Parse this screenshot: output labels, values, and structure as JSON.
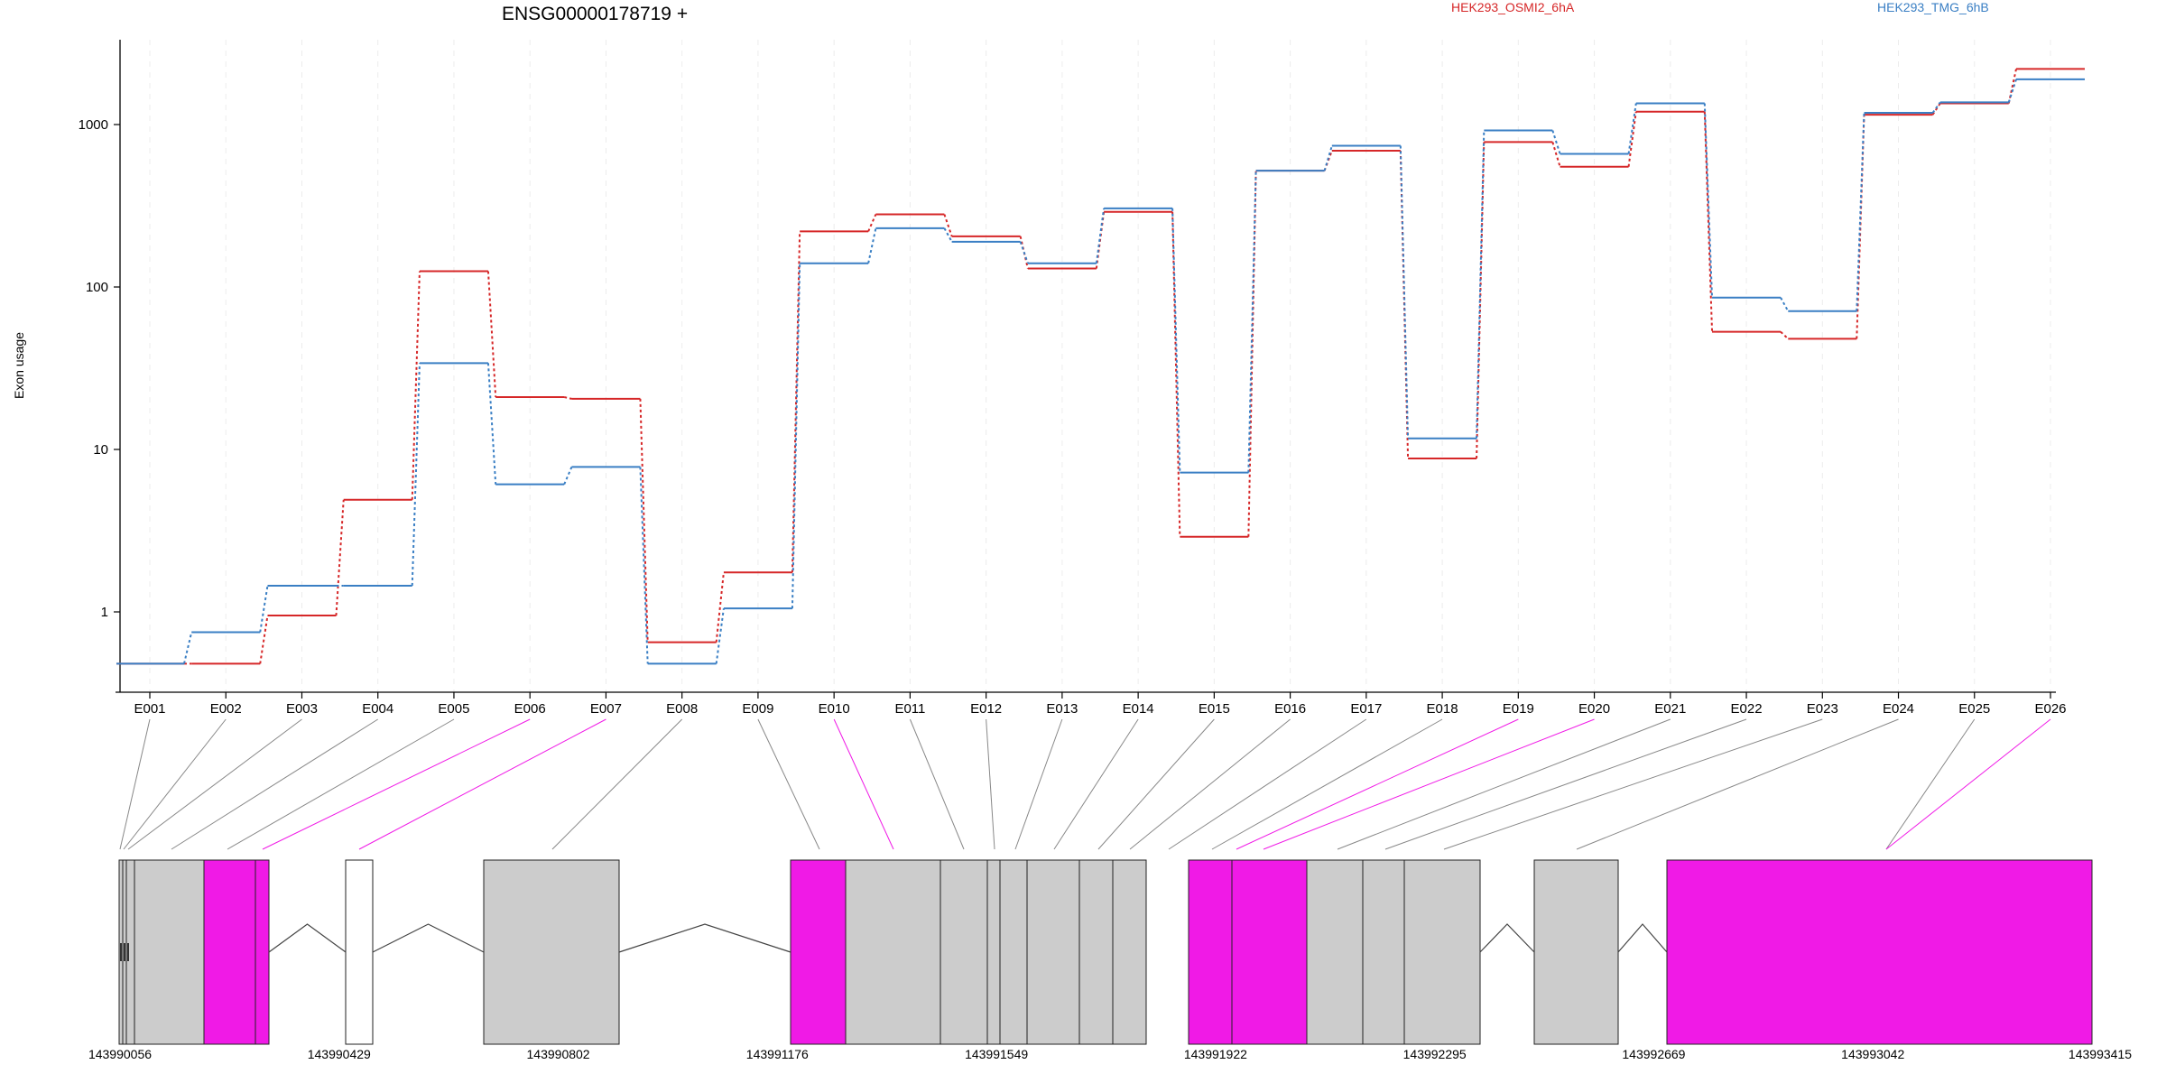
{
  "title": "ENSG00000178719 +",
  "legend": [
    {
      "name": "HEK293_OSMI2_6hA",
      "color": "#d62728"
    },
    {
      "name": "HEK293_TMG_6hB",
      "color": "#3a7fc4"
    }
  ],
  "chart_data": {
    "type": "line",
    "title": "ENSG00000178719 +",
    "ylabel": "Exon usage",
    "yscale": "log",
    "ylim": [
      0.4,
      3000
    ],
    "yticks": [
      1,
      10,
      100,
      1000
    ],
    "ytick_labels": [
      "1",
      "10",
      "100",
      "1000"
    ],
    "categories": [
      "E001",
      "E002",
      "E003",
      "E004",
      "E005",
      "E006",
      "E007",
      "E008",
      "E009",
      "E010",
      "E011",
      "E012",
      "E013",
      "E014",
      "E015",
      "E016",
      "E017",
      "E018",
      "E019",
      "E020",
      "E021",
      "E022",
      "E023",
      "E024",
      "E025",
      "E026"
    ],
    "series": [
      {
        "name": "HEK293_OSMI2_6hA",
        "color": "#d62728",
        "values": [
          0.48,
          0.48,
          0.95,
          4.9,
          125,
          21,
          20.5,
          0.65,
          1.75,
          220,
          280,
          205,
          130,
          290,
          2.9,
          520,
          690,
          8.8,
          780,
          550,
          1200,
          53,
          48,
          1150,
          1350,
          2200
        ]
      },
      {
        "name": "HEK293_TMG_6hB",
        "color": "#3a7fc4",
        "values": [
          0.48,
          0.75,
          1.45,
          1.45,
          34,
          6.1,
          7.8,
          0.48,
          1.05,
          140,
          230,
          190,
          140,
          305,
          7.2,
          520,
          740,
          11.7,
          920,
          660,
          1350,
          86,
          71,
          1180,
          1370,
          1900
        ]
      }
    ]
  },
  "gene_model": {
    "coordinate_labels": [
      "143990056",
      "143990429",
      "143990802",
      "143991176",
      "143991549",
      "143991922",
      "143992295",
      "143992669",
      "143993042",
      "143993415"
    ],
    "highlight_color": "#f01ae6",
    "exon_color": "#cccccc"
  }
}
